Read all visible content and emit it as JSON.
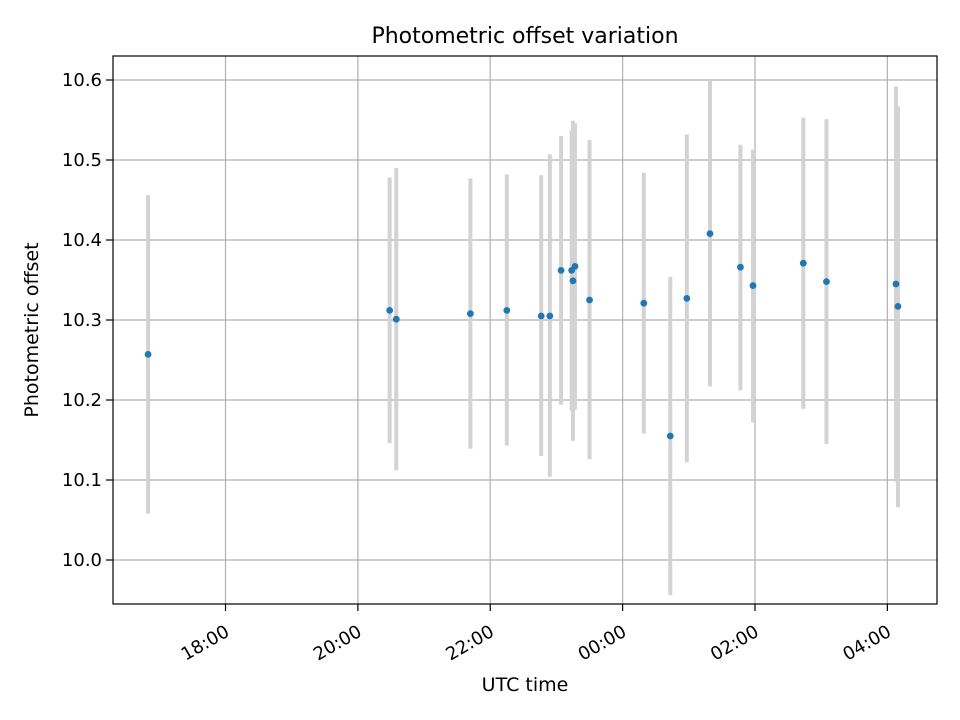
{
  "chart_data": {
    "type": "scatter",
    "title": "Photometric offset variation",
    "xlabel": "UTC time",
    "ylabel": "Photometric offset",
    "grid": true,
    "xlim": [
      16.3,
      28.75
    ],
    "ylim": [
      9.945,
      10.63
    ],
    "x_ticks": [
      {
        "value": 18,
        "label": "18:00"
      },
      {
        "value": 20,
        "label": "20:00"
      },
      {
        "value": 22,
        "label": "22:00"
      },
      {
        "value": 24,
        "label": "00:00"
      },
      {
        "value": 26,
        "label": "02:00"
      },
      {
        "value": 28,
        "label": "04:00"
      }
    ],
    "y_ticks": [
      {
        "value": 10.0,
        "label": "10.0"
      },
      {
        "value": 10.1,
        "label": "10.1"
      },
      {
        "value": 10.2,
        "label": "10.2"
      },
      {
        "value": 10.3,
        "label": "10.3"
      },
      {
        "value": 10.4,
        "label": "10.4"
      },
      {
        "value": 10.5,
        "label": "10.5"
      },
      {
        "value": 10.6,
        "label": "10.6"
      }
    ],
    "colors": {
      "point": "#1f77b4",
      "errorbar": "#d3d3d3",
      "grid": "#b0b0b0"
    },
    "points": [
      {
        "x": 16.83,
        "y": 10.257,
        "low": 10.058,
        "high": 10.456
      },
      {
        "x": 20.48,
        "y": 10.312,
        "low": 10.146,
        "high": 10.478
      },
      {
        "x": 20.58,
        "y": 10.301,
        "low": 10.112,
        "high": 10.49
      },
      {
        "x": 21.7,
        "y": 10.308,
        "low": 10.139,
        "high": 10.477
      },
      {
        "x": 22.25,
        "y": 10.312,
        "low": 10.143,
        "high": 10.482
      },
      {
        "x": 22.77,
        "y": 10.305,
        "low": 10.13,
        "high": 10.481
      },
      {
        "x": 22.9,
        "y": 10.305,
        "low": 10.104,
        "high": 10.507
      },
      {
        "x": 23.07,
        "y": 10.362,
        "low": 10.194,
        "high": 10.53
      },
      {
        "x": 23.23,
        "y": 10.362,
        "low": 10.187,
        "high": 10.537
      },
      {
        "x": 23.25,
        "y": 10.349,
        "low": 10.149,
        "high": 10.549
      },
      {
        "x": 23.28,
        "y": 10.367,
        "low": 10.188,
        "high": 10.546
      },
      {
        "x": 23.5,
        "y": 10.325,
        "low": 10.126,
        "high": 10.525
      },
      {
        "x": 24.32,
        "y": 10.321,
        "low": 10.158,
        "high": 10.484
      },
      {
        "x": 24.72,
        "y": 10.155,
        "low": 9.956,
        "high": 10.354
      },
      {
        "x": 24.97,
        "y": 10.327,
        "low": 10.122,
        "high": 10.532
      },
      {
        "x": 25.32,
        "y": 10.408,
        "low": 10.217,
        "high": 10.6
      },
      {
        "x": 25.78,
        "y": 10.366,
        "low": 10.212,
        "high": 10.519
      },
      {
        "x": 25.97,
        "y": 10.343,
        "low": 10.172,
        "high": 10.513
      },
      {
        "x": 26.73,
        "y": 10.371,
        "low": 10.189,
        "high": 10.553
      },
      {
        "x": 27.08,
        "y": 10.348,
        "low": 10.145,
        "high": 10.551
      },
      {
        "x": 28.13,
        "y": 10.345,
        "low": 10.098,
        "high": 10.592
      },
      {
        "x": 28.16,
        "y": 10.317,
        "low": 10.066,
        "high": 10.567
      }
    ]
  }
}
